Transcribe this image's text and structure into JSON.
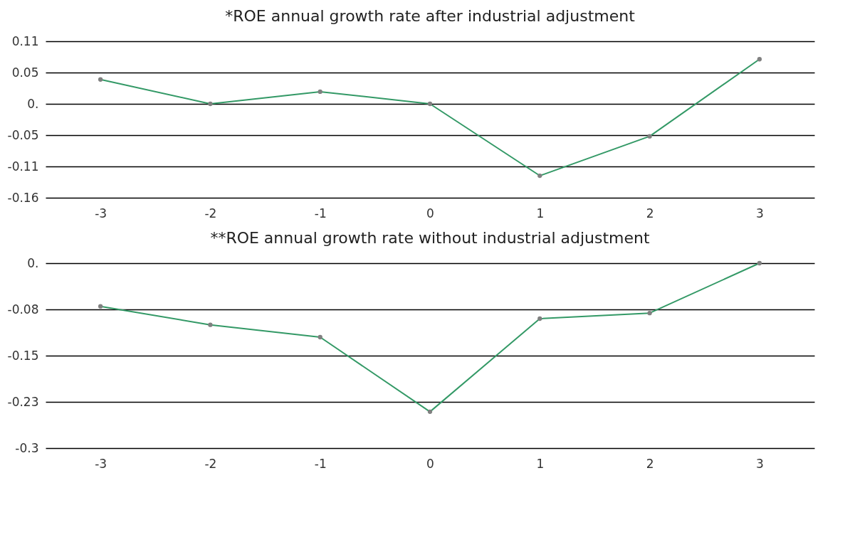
{
  "chart_data": [
    {
      "type": "line",
      "title": "*ROE annual growth rate after industrial adjustment",
      "categories": [
        "-3",
        "-2",
        "-1",
        "0",
        "1",
        "2",
        "3"
      ],
      "series": [
        {
          "color": "#339966",
          "values": [
            0.042,
            0,
            0.021,
            0,
            -0.124,
            -0.056,
            0.077
          ]
        }
      ],
      "ylim": [
        -0.162,
        0.108
      ],
      "yticks": [
        {
          "value": 0.108,
          "label": "0.11"
        },
        {
          "value": 0.054,
          "label": "0.05"
        },
        {
          "value": 0,
          "label": "0."
        },
        {
          "value": -0.054,
          "label": "-0.05"
        },
        {
          "value": -0.108,
          "label": "-0.11"
        },
        {
          "value": -0.162,
          "label": "-0.16"
        }
      ],
      "grid": "y",
      "marker": "circle"
    },
    {
      "type": "line",
      "title": "**ROE annual growth rate without industrial adjustment",
      "categories": [
        "-3",
        "-2",
        "-1",
        "0",
        "1",
        "2",
        "3"
      ],
      "series": [
        {
          "color": "#339966",
          "values": [
            -0.07,
            -0.1,
            -0.12,
            -0.241,
            -0.09,
            -0.081,
            0
          ]
        }
      ],
      "ylim": [
        -0.3,
        0
      ],
      "yticks": [
        {
          "value": 0,
          "label": "0."
        },
        {
          "value": -0.075,
          "label": "-0.08"
        },
        {
          "value": -0.15,
          "label": "-0.15"
        },
        {
          "value": -0.225,
          "label": "-0.23"
        },
        {
          "value": -0.3,
          "label": "-0.3"
        }
      ],
      "grid": "y",
      "marker": "circle"
    }
  ]
}
